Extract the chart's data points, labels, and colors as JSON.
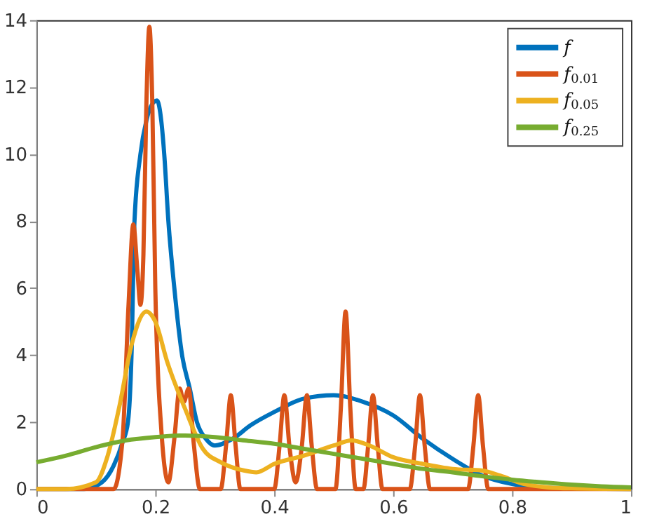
{
  "chart_data": {
    "type": "line",
    "xlim": [
      0,
      1
    ],
    "ylim": [
      0,
      14
    ],
    "xticks": [
      0,
      0.2,
      0.4,
      0.6,
      0.8,
      {
        "value": 1,
        "label": "1"
      }
    ],
    "yticks": [
      0,
      2,
      4,
      6,
      8,
      10,
      12,
      14
    ],
    "grid": false,
    "legend": "top right",
    "series": [
      {
        "name": "f",
        "color": "#0072bd",
        "x": [
          0,
          0.08,
          0.11,
          0.13,
          0.145,
          0.154,
          0.16,
          0.165,
          0.175,
          0.185,
          0.195,
          0.203,
          0.21,
          0.215,
          0.222,
          0.232,
          0.245,
          0.258,
          0.27,
          0.285,
          0.3,
          0.33,
          0.36,
          0.4,
          0.45,
          0.5,
          0.55,
          0.6,
          0.65,
          0.7,
          0.75,
          0.8,
          0.85,
          0.9,
          1
        ],
        "values": [
          0,
          0,
          0.2,
          0.7,
          1.4,
          2,
          4,
          8,
          10,
          11,
          11.5,
          11.6,
          11,
          10,
          8,
          6,
          4,
          3,
          2,
          1.5,
          1.3,
          1.5,
          1.9,
          2.3,
          2.7,
          2.8,
          2.6,
          2.2,
          1.5,
          0.9,
          0.4,
          0.15,
          0.05,
          0.02,
          0
        ]
      },
      {
        "name": "f$_{0.01}$",
        "color": "#d95319",
        "x": [
          0,
          0.13,
          0.145,
          0.155,
          0.163,
          0.17,
          0.175,
          0.18,
          0.185,
          0.19,
          0.195,
          0.2,
          0.21,
          0.222,
          0.232,
          0.241,
          0.248,
          0.256,
          0.265,
          0.275,
          0.31,
          0.319,
          0.327,
          0.335,
          0.343,
          0.4,
          0.409,
          0.417,
          0.426,
          0.436,
          0.446,
          0.455,
          0.463,
          0.472,
          0.503,
          0.512,
          0.52,
          0.528,
          0.537,
          0.55,
          0.558,
          0.566,
          0.574,
          0.582,
          0.628,
          0.637,
          0.645,
          0.653,
          0.662,
          0.726,
          0.735,
          0.743,
          0.751,
          0.76,
          1
        ],
        "values": [
          0,
          0,
          1.5,
          5.5,
          7.9,
          6.5,
          5.5,
          7,
          11.5,
          13.8,
          11.5,
          6,
          1.8,
          0.2,
          1.5,
          3.0,
          2.6,
          3.0,
          1.3,
          0,
          0,
          1.3,
          2.8,
          1.3,
          0,
          0,
          1.3,
          2.8,
          1.2,
          0.2,
          1.2,
          2.8,
          1.3,
          0,
          0,
          2.4,
          5.3,
          2.4,
          0,
          0,
          1.3,
          2.8,
          1.3,
          0,
          0,
          1.3,
          2.8,
          1.3,
          0,
          0,
          1.3,
          2.8,
          1.3,
          0,
          0
        ]
      },
      {
        "name": "f$_{0.05}$",
        "color": "#edb120",
        "x": [
          0,
          0.05,
          0.1,
          0.12,
          0.14,
          0.16,
          0.185,
          0.2,
          0.22,
          0.25,
          0.28,
          0.31,
          0.35,
          0.37,
          0.4,
          0.45,
          0.5,
          0.53,
          0.56,
          0.6,
          0.65,
          0.7,
          0.75,
          0.78,
          0.82,
          0.86,
          0.9,
          1
        ],
        "values": [
          0,
          0,
          0.2,
          1.0,
          2.5,
          4.3,
          5.3,
          5.0,
          3.8,
          2.4,
          1.2,
          0.8,
          0.55,
          0.5,
          0.75,
          1.0,
          1.3,
          1.45,
          1.3,
          0.95,
          0.75,
          0.6,
          0.55,
          0.4,
          0.15,
          0.05,
          0.02,
          0
        ]
      },
      {
        "name": "f$_{0.25}$",
        "color": "#77ac30",
        "x": [
          0,
          0.05,
          0.1,
          0.15,
          0.2,
          0.25,
          0.3,
          0.35,
          0.4,
          0.45,
          0.5,
          0.55,
          0.6,
          0.65,
          0.7,
          0.75,
          0.8,
          0.85,
          0.9,
          0.95,
          1
        ],
        "values": [
          0.8,
          1.0,
          1.25,
          1.45,
          1.55,
          1.6,
          1.55,
          1.45,
          1.35,
          1.2,
          1.05,
          0.9,
          0.75,
          0.6,
          0.5,
          0.38,
          0.28,
          0.2,
          0.13,
          0.08,
          0.05
        ]
      }
    ]
  }
}
